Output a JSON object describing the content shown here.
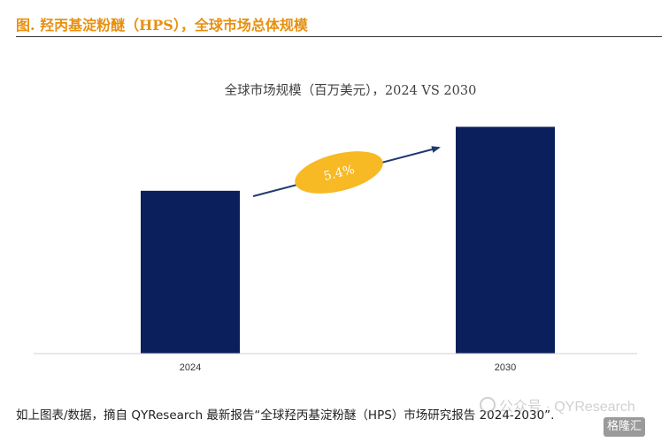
{
  "figure": {
    "title": "图.    羟丙基淀粉醚（HPS），全球市场总体规模"
  },
  "chart_data": {
    "type": "bar",
    "title": "全球市场规模（百万美元），2024 VS 2030",
    "categories": [
      "2024",
      "2030"
    ],
    "values": [
      56,
      78
    ],
    "ylim": [
      0,
      90
    ],
    "bar_color": "#0B1F5C",
    "grid": false,
    "annotation": {
      "label": "5.4%",
      "meaning": "",
      "ellipse_color": "#F7B924",
      "arrow_color": "#1F3A6E"
    }
  },
  "footer": {
    "note": "如上图表/数据，摘自 QYResearch 最新报告“全球羟丙基淀粉醚（HPS）市场研究报告 2024-2030”."
  },
  "watermark": {
    "text": "公众号 · QYResearch"
  },
  "logo": {
    "text": "格隆汇"
  }
}
